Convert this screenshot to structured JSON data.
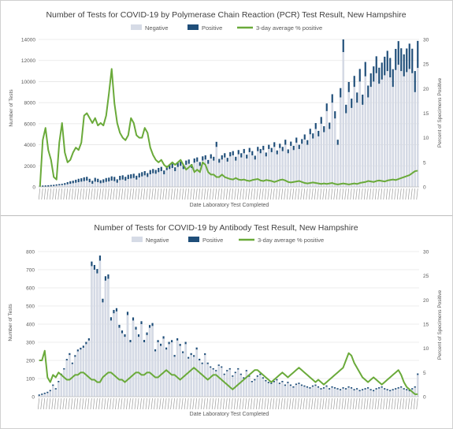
{
  "colors": {
    "negative": "#d6dbe6",
    "negative_stroke": "#c3cad8",
    "positive": "#1f4e79",
    "average": "#6aaa3a",
    "grid": "#e6e6e6",
    "axis_text": "#595959",
    "title_text": "#404040"
  },
  "chart_data": [
    {
      "type": "bar",
      "title": "Number of Tests for COVID-19 by Polymerase Chain Reaction (PCR) Test Result, New Hampshire",
      "xlabel": "Date Laboratory Test Completed",
      "ylabel": "Number of Tests",
      "y2label": "Percent of Specimens Positive",
      "ylim": [
        0,
        14000
      ],
      "y2lim": [
        0,
        30
      ],
      "yticks": [
        "0",
        "2000",
        "4000",
        "6000",
        "8000",
        "10000",
        "12000",
        "14000"
      ],
      "y2ticks": [
        "0",
        "5",
        "10",
        "15",
        "20",
        "25",
        "30"
      ],
      "legend": [
        "Negative",
        "Positive",
        "3-day average % positive"
      ],
      "legend_position": "top",
      "grid": true,
      "x_count": 138,
      "series": [
        {
          "name": "Negative",
          "values": [
            5,
            10,
            20,
            40,
            60,
            80,
            120,
            150,
            180,
            200,
            250,
            300,
            350,
            400,
            450,
            500,
            550,
            600,
            450,
            300,
            500,
            450,
            350,
            400,
            480,
            520,
            600,
            550,
            400,
            650,
            700,
            600,
            750,
            800,
            850,
            700,
            900,
            1000,
            1100,
            950,
            1200,
            1300,
            1250,
            1400,
            1500,
            1200,
            1600,
            1700,
            1800,
            1500,
            1900,
            2000,
            1700,
            2100,
            2200,
            1800,
            2300,
            2400,
            2000,
            2500,
            2600,
            2200,
            2700,
            2500,
            3800,
            2300,
            2600,
            2800,
            2400,
            2900,
            3000,
            2500,
            3100,
            2800,
            3200,
            2700,
            3300,
            3000,
            2600,
            3400,
            3200,
            3500,
            2900,
            3600,
            3300,
            3800,
            3100,
            3700,
            3400,
            4000,
            3200,
            3900,
            3500,
            4200,
            3600,
            4100,
            4500,
            4000,
            5000,
            4600,
            5500,
            4800,
            6000,
            5200,
            7200,
            5500,
            8000,
            6500,
            4000,
            8500,
            12800,
            7000,
            9000,
            7500,
            9500,
            8000,
            10000,
            7800,
            10500,
            8500,
            9500,
            10000,
            10800,
            9800,
            10200,
            10600,
            11000,
            10400,
            9500,
            11100,
            11600,
            11000,
            10500,
            10900,
            11200,
            10800,
            9000,
            11300
          ]
        },
        {
          "name": "Positive",
          "values": [
            0,
            0,
            2,
            3,
            5,
            8,
            10,
            12,
            15,
            20,
            25,
            30,
            30,
            35,
            40,
            40,
            45,
            45,
            40,
            35,
            45,
            40,
            35,
            40,
            45,
            45,
            50,
            50,
            40,
            50,
            50,
            45,
            50,
            50,
            50,
            45,
            50,
            50,
            50,
            45,
            50,
            50,
            45,
            50,
            50,
            45,
            50,
            50,
            50,
            45,
            50,
            50,
            45,
            50,
            50,
            45,
            50,
            50,
            45,
            50,
            50,
            45,
            50,
            45,
            60,
            45,
            50,
            50,
            45,
            50,
            50,
            45,
            50,
            50,
            50,
            45,
            50,
            50,
            45,
            50,
            50,
            50,
            45,
            50,
            50,
            55,
            45,
            50,
            50,
            60,
            45,
            50,
            50,
            60,
            50,
            55,
            60,
            55,
            65,
            60,
            70,
            65,
            80,
            70,
            90,
            75,
            100,
            85,
            60,
            110,
            150,
            100,
            120,
            110,
            130,
            120,
            150,
            120,
            170,
            140,
            160,
            180,
            200,
            190,
            200,
            220,
            240,
            230,
            210,
            250,
            280,
            270,
            260,
            280,
            300,
            290,
            250,
            320
          ]
        },
        {
          "name": "3-day average % positive",
          "type": "line",
          "values": [
            0,
            9.5,
            12,
            7.5,
            5.5,
            2,
            1.5,
            9,
            13,
            7,
            5,
            5.5,
            7,
            8,
            7.5,
            9,
            14.5,
            15,
            14,
            13,
            14,
            12.5,
            13,
            12.5,
            14.5,
            19,
            24,
            17,
            13,
            11,
            10,
            9.5,
            10.5,
            14,
            13,
            10.5,
            10,
            10,
            12,
            11,
            8,
            6.5,
            5.5,
            5,
            5.5,
            4.5,
            4,
            4.5,
            5,
            4.5,
            5,
            5.5,
            4.5,
            3.5,
            4,
            4.5,
            3,
            3.5,
            3,
            5,
            4.5,
            3,
            2.5,
            2.5,
            2,
            2,
            2.5,
            2,
            1.8,
            1.6,
            1.5,
            1.8,
            1.5,
            1.4,
            1.5,
            1.3,
            1.2,
            1.4,
            1.5,
            1.6,
            1.3,
            1.2,
            1.4,
            1.3,
            1.2,
            1.0,
            1.2,
            1.4,
            1.5,
            1.3,
            1.0,
            0.9,
            1.0,
            1.1,
            1.2,
            1.0,
            0.8,
            0.7,
            0.8,
            0.9,
            0.8,
            0.7,
            0.6,
            0.7,
            0.6,
            0.7,
            0.8,
            0.6,
            0.5,
            0.6,
            0.7,
            0.6,
            0.5,
            0.6,
            0.7,
            0.6,
            0.8,
            0.9,
            1.0,
            1.2,
            1.1,
            1.0,
            1.2,
            1.3,
            1.2,
            1.1,
            1.3,
            1.4,
            1.5,
            1.4,
            1.6,
            1.8,
            2.0,
            2.2,
            2.4,
            2.8,
            3.2,
            3.3
          ]
        }
      ]
    },
    {
      "type": "bar",
      "title": "Number of Tests for COVID-19 by Antibody Test Result, New Hampshire",
      "xlabel": "Date Laboratory Test Completed",
      "ylabel": "Number of Tests",
      "y2label": "Percent of Specimens Positive",
      "ylim": [
        0,
        800
      ],
      "y2lim": [
        0,
        30
      ],
      "yticks": [
        "0",
        "100",
        "200",
        "300",
        "400",
        "500",
        "600",
        "700",
        "800"
      ],
      "y2ticks": [
        "0",
        "5",
        "10",
        "15",
        "20",
        "25",
        "30"
      ],
      "legend": [
        "Negative",
        "Positive",
        "3-day average % positive"
      ],
      "legend_position": "top",
      "grid": true,
      "x_count": 138,
      "series": [
        {
          "name": "Negative",
          "values": [
            5,
            10,
            15,
            20,
            30,
            60,
            40,
            80,
            120,
            150,
            200,
            230,
            180,
            220,
            250,
            260,
            270,
            290,
            310,
            720,
            700,
            680,
            750,
            520,
            640,
            650,
            420,
            460,
            470,
            380,
            350,
            330,
            450,
            300,
            420,
            370,
            330,
            400,
            300,
            340,
            380,
            390,
            250,
            300,
            280,
            320,
            260,
            290,
            300,
            220,
            310,
            280,
            240,
            290,
            210,
            230,
            220,
            260,
            200,
            180,
            230,
            180,
            160,
            150,
            140,
            170,
            160,
            120,
            140,
            150,
            110,
            130,
            150,
            120,
            100,
            140,
            110,
            80,
            90,
            110,
            120,
            100,
            85,
            75,
            70,
            80,
            90,
            70,
            80,
            60,
            75,
            60,
            50,
            65,
            70,
            60,
            55,
            50,
            45,
            55,
            60,
            50,
            40,
            45,
            55,
            40,
            50,
            45,
            40,
            35,
            45,
            40,
            50,
            45,
            35,
            40,
            30,
            35,
            40,
            45,
            35,
            30,
            40,
            45,
            50,
            40,
            35,
            30,
            35,
            40,
            45,
            50,
            40,
            35,
            30,
            40,
            50,
            120
          ]
        },
        {
          "name": "Positive",
          "values": [
            0,
            0,
            1,
            1,
            2,
            3,
            2,
            4,
            5,
            6,
            8,
            10,
            8,
            9,
            10,
            10,
            11,
            12,
            12,
            25,
            26,
            24,
            28,
            20,
            24,
            24,
            18,
            18,
            18,
            16,
            15,
            14,
            18,
            13,
            17,
            15,
            14,
            16,
            13,
            14,
            15,
            16,
            11,
            12,
            12,
            13,
            11,
            12,
            12,
            10,
            12,
            11,
            10,
            12,
            9,
            10,
            9,
            11,
            9,
            8,
            9,
            8,
            7,
            7,
            6,
            7,
            7,
            6,
            6,
            7,
            5,
            6,
            7,
            5,
            5,
            6,
            5,
            4,
            4,
            5,
            6,
            5,
            4,
            4,
            4,
            4,
            5,
            4,
            4,
            3,
            4,
            3,
            3,
            4,
            4,
            3,
            3,
            3,
            3,
            3,
            3,
            3,
            2,
            3,
            3,
            2,
            3,
            3,
            2,
            2,
            3,
            3,
            4,
            3,
            2,
            3,
            2,
            2,
            3,
            4,
            3,
            2,
            3,
            4,
            4,
            3,
            3,
            2,
            3,
            3,
            4,
            4,
            3,
            3,
            2,
            3,
            4,
            8
          ]
        },
        {
          "name": "3-day average % positive",
          "type": "line",
          "values": [
            7.5,
            7.5,
            9.5,
            4,
            3,
            4.5,
            4,
            5,
            4.5,
            4,
            3.5,
            3.5,
            4,
            4.5,
            4.5,
            5,
            5,
            4.5,
            4,
            3.5,
            3.5,
            3,
            3,
            4,
            4.5,
            5,
            5,
            4.5,
            4,
            3.5,
            3.5,
            3,
            3.5,
            4,
            4.5,
            5,
            5,
            4.5,
            4.5,
            5,
            5,
            4.5,
            4,
            4,
            4.5,
            5,
            5.5,
            5,
            4.5,
            4.5,
            4,
            3.5,
            4,
            4.5,
            5,
            5.5,
            6,
            5.5,
            5,
            4.5,
            4,
            3.5,
            4,
            4.5,
            4.5,
            4,
            3.5,
            3,
            2.5,
            2,
            1.5,
            2,
            2.5,
            3,
            3.5,
            4,
            4.5,
            5,
            5.5,
            5.5,
            5,
            4.5,
            4,
            3.5,
            3,
            3.5,
            4,
            4.5,
            5,
            4.5,
            4,
            4.5,
            5,
            5.5,
            6,
            5.5,
            5,
            4.5,
            4,
            3.5,
            3,
            3.5,
            3,
            2.5,
            3,
            3.5,
            4,
            4.5,
            5,
            5.5,
            6,
            7.5,
            9,
            8.5,
            7,
            6,
            5,
            4,
            3.5,
            3,
            3.5,
            4,
            3.5,
            3,
            2.5,
            3,
            3.5,
            4,
            4.5,
            5,
            5.5,
            4.5,
            3,
            2,
            1.5,
            1,
            0.5,
            0.5
          ]
        }
      ]
    }
  ]
}
